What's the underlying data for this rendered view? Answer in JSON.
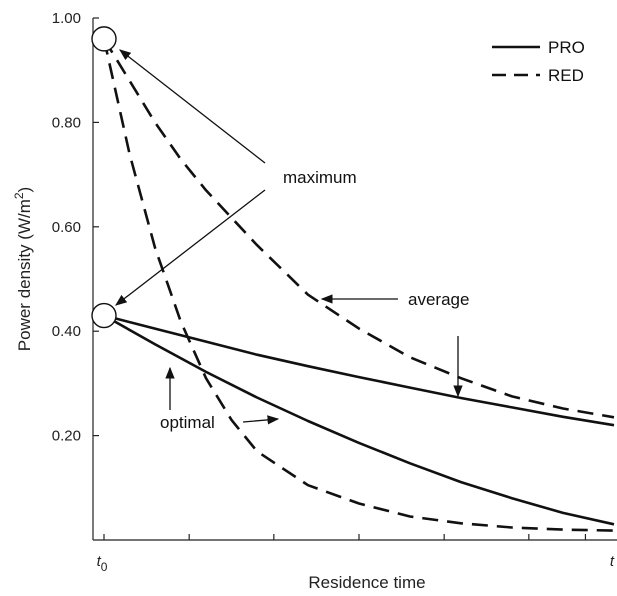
{
  "chart_data": {
    "type": "line",
    "xlabel": "Residence time",
    "ylabel": "Power density (W/m²)",
    "ylabel_parts": {
      "main": "Power density (W/m",
      "sup": "2",
      "close": ")"
    },
    "x_tick_labels": {
      "start": {
        "base": "t",
        "sub": "0"
      },
      "end": {
        "base": "t",
        "sub": ""
      }
    },
    "xlim": [
      0,
      1
    ],
    "ylim": [
      0.0,
      1.0
    ],
    "y_ticks": [
      0.2,
      0.4,
      0.6,
      0.8,
      1.0
    ],
    "y_tick_labels": [
      "0.20",
      "0.40",
      "0.60",
      "0.80",
      "1.00"
    ],
    "x_minor_ticks": [
      0.167,
      0.333,
      0.5,
      0.667,
      0.833,
      0.944
    ],
    "grid": false,
    "legend": {
      "position": "top-right",
      "entries": [
        {
          "name": "PRO",
          "style": "solid"
        },
        {
          "name": "RED",
          "style": "dashed"
        }
      ]
    },
    "series": [
      {
        "name": "PRO",
        "variant": "average",
        "style": "solid",
        "x": [
          0,
          0.1,
          0.2,
          0.3,
          0.4,
          0.5,
          0.6,
          0.7,
          0.8,
          0.9,
          1.0
        ],
        "y": [
          0.43,
          0.405,
          0.38,
          0.355,
          0.333,
          0.312,
          0.292,
          0.272,
          0.254,
          0.236,
          0.22
        ]
      },
      {
        "name": "PRO",
        "variant": "optimal",
        "style": "solid",
        "x": [
          0,
          0.1,
          0.2,
          0.3,
          0.4,
          0.5,
          0.6,
          0.7,
          0.8,
          0.9,
          1.0
        ],
        "y": [
          0.43,
          0.375,
          0.322,
          0.273,
          0.228,
          0.186,
          0.147,
          0.111,
          0.08,
          0.052,
          0.03
        ]
      },
      {
        "name": "RED",
        "variant": "average",
        "style": "dashed",
        "x": [
          0,
          0.05,
          0.1,
          0.15,
          0.2,
          0.3,
          0.4,
          0.5,
          0.6,
          0.7,
          0.8,
          0.9,
          1.0
        ],
        "y": [
          0.96,
          0.88,
          0.8,
          0.73,
          0.67,
          0.565,
          0.47,
          0.405,
          0.35,
          0.31,
          0.275,
          0.252,
          0.235
        ]
      },
      {
        "name": "RED",
        "variant": "optimal",
        "style": "dashed",
        "x": [
          0,
          0.05,
          0.1,
          0.15,
          0.2,
          0.25,
          0.3,
          0.4,
          0.5,
          0.6,
          0.7,
          0.8,
          0.9,
          1.0
        ],
        "y": [
          0.96,
          0.74,
          0.56,
          0.42,
          0.31,
          0.23,
          0.17,
          0.105,
          0.07,
          0.045,
          0.032,
          0.024,
          0.02,
          0.018
        ]
      }
    ],
    "markers": [
      {
        "label": "maximum",
        "x": 0,
        "y": 0.96
      },
      {
        "label": "maximum",
        "x": 0,
        "y": 0.43
      }
    ],
    "annotations": [
      {
        "text": "maximum"
      },
      {
        "text": "average"
      },
      {
        "text": "optimal"
      }
    ]
  }
}
